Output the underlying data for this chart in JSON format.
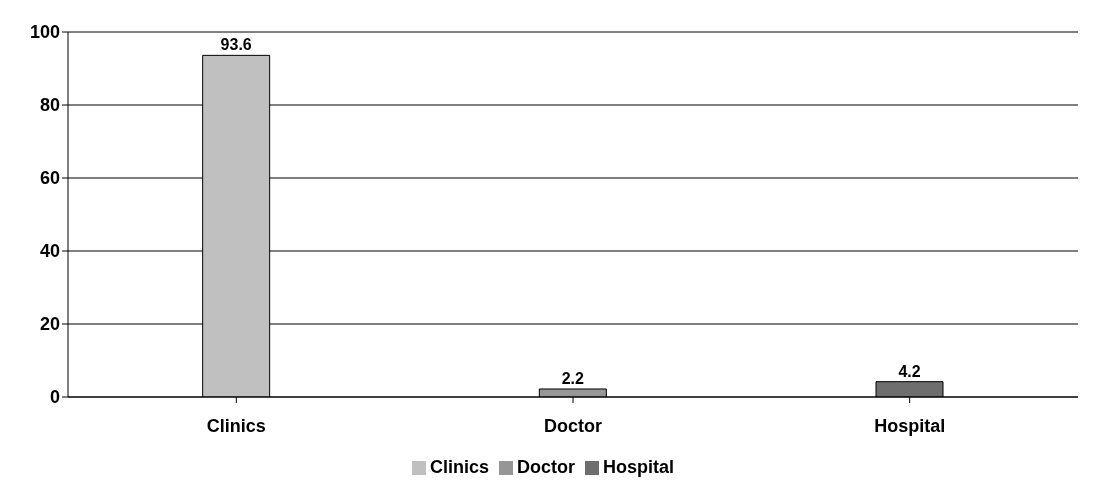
{
  "chart_data": {
    "type": "bar",
    "categories": [
      "Clinics",
      "Doctor",
      "Hospital"
    ],
    "series": [
      {
        "name": "Clinics",
        "color": "#c0c0c0",
        "values": [
          93.6,
          null,
          null
        ]
      },
      {
        "name": "Doctor",
        "color": "#969696",
        "values": [
          null,
          2.2,
          null
        ]
      },
      {
        "name": "Hospital",
        "color": "#6e6e6e",
        "values": [
          null,
          null,
          4.2
        ]
      }
    ],
    "stacked": true,
    "ylim": [
      0,
      100
    ],
    "yticks": [
      0,
      20,
      40,
      60,
      80,
      100
    ],
    "grid": "y",
    "legend": "bottom",
    "data_labels": true
  }
}
